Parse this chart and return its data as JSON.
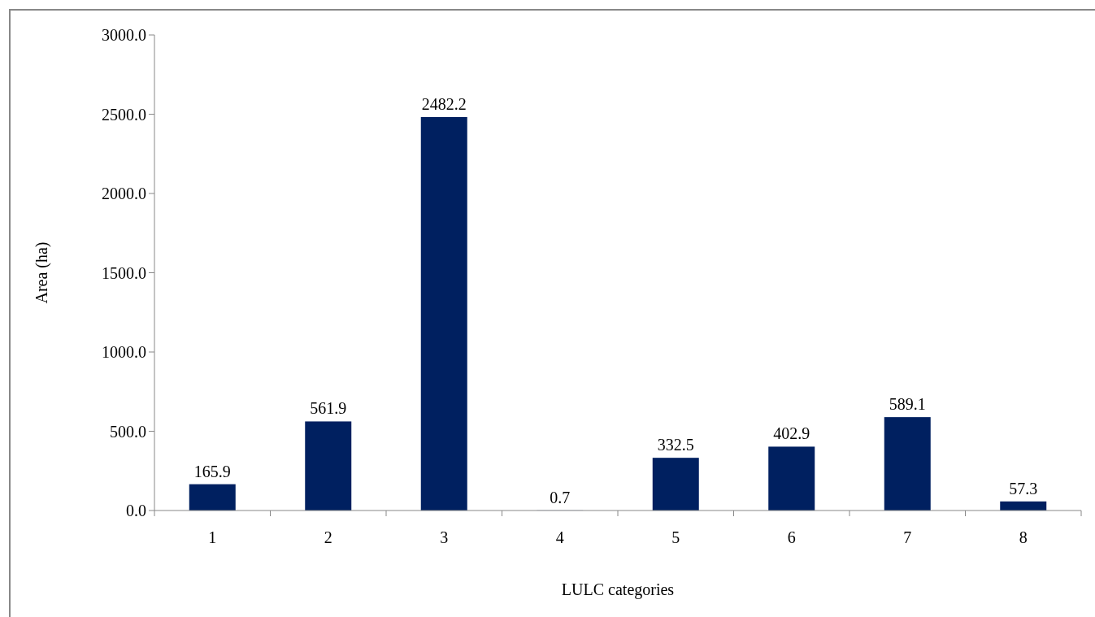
{
  "chart_data": {
    "type": "bar",
    "xlabel": "LULC categories",
    "ylabel": "Area (ha)",
    "categories": [
      "1",
      "2",
      "3",
      "4",
      "5",
      "6",
      "7",
      "8"
    ],
    "values": [
      165.9,
      561.9,
      2482.2,
      0.7,
      332.5,
      402.9,
      589.1,
      57.3
    ],
    "color": "#002060",
    "ylim": [
      0,
      3000
    ],
    "yticks": [
      {
        "value": 0,
        "label": "0.0"
      },
      {
        "value": 500,
        "label": "500.0"
      },
      {
        "value": 1000,
        "label": "1000.0"
      },
      {
        "value": 1500,
        "label": "1500.0"
      },
      {
        "value": 2000,
        "label": "2000.0"
      },
      {
        "value": 2500,
        "label": "2500.0"
      },
      {
        "value": 3000,
        "label": "3000.0"
      }
    ],
    "data_labels": true,
    "grid": false
  }
}
